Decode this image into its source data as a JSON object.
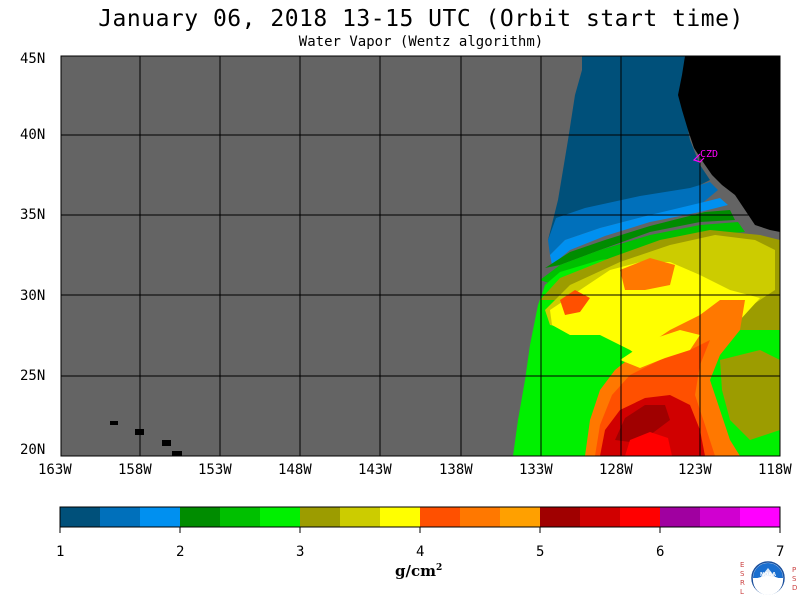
{
  "title": "January 06, 2018  13-15 UTC  (Orbit start time)",
  "subtitle": "Water Vapor (Wentz algorithm)",
  "lat_labels": [
    "45N",
    "40N",
    "35N",
    "30N",
    "25N",
    "20N"
  ],
  "lon_labels": [
    "163W",
    "158W",
    "153W",
    "148W",
    "143W",
    "138W",
    "133W",
    "128W",
    "123W",
    "118W"
  ],
  "station_label": "CZD",
  "colorbar": {
    "unit": "g/cm",
    "unit_sup": "2",
    "ticks": [
      "1",
      "2",
      "3",
      "4",
      "5",
      "6",
      "7"
    ],
    "colors": [
      "#00507a",
      "#0070bb",
      "#0090f0",
      "#008c00",
      "#00c000",
      "#00f000",
      "#9c9c00",
      "#cccc00",
      "#ffff00",
      "#ff5000",
      "#ff7800",
      "#ffa000",
      "#a00000",
      "#d00000",
      "#ff0000",
      "#a000a0",
      "#d000d0",
      "#ff00ff"
    ]
  },
  "logo": {
    "left_letters": [
      "E",
      "S",
      "R",
      "L"
    ],
    "right_letters": [
      "P",
      "S",
      "D"
    ],
    "name": "NOAA"
  },
  "colors": {
    "no_data": "#646464",
    "land": "#000000",
    "grid": "#000000",
    "station": "#ff00ff"
  }
}
